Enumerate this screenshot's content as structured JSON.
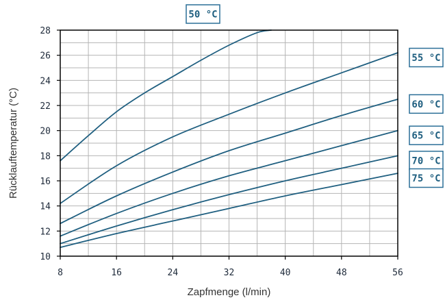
{
  "chart_data": {
    "type": "line",
    "xlabel": "Zapfmenge (l/min)",
    "ylabel": "Rücklauftemperatur (°C)",
    "xlim": [
      8,
      56
    ],
    "ylim": [
      10,
      28
    ],
    "xticks": [
      8,
      16,
      24,
      32,
      40,
      48,
      56
    ],
    "yticks": [
      10,
      12,
      14,
      16,
      18,
      20,
      22,
      24,
      26,
      28
    ],
    "grid": true,
    "colors": {
      "line": "#1f5f80",
      "grid": "#b5b5b5",
      "tag_border": "#2a6f97",
      "axis": "#000000"
    },
    "series": [
      {
        "name": "50 °C",
        "points": [
          [
            8,
            17.6
          ],
          [
            12,
            19.6
          ],
          [
            16,
            21.5
          ],
          [
            20,
            23.0
          ],
          [
            24,
            24.3
          ],
          [
            28,
            25.6
          ],
          [
            32,
            26.8
          ],
          [
            36,
            27.8
          ],
          [
            38,
            28.0
          ]
        ]
      },
      {
        "name": "55 °C",
        "points": [
          [
            8,
            14.2
          ],
          [
            16,
            17.2
          ],
          [
            24,
            19.5
          ],
          [
            32,
            21.3
          ],
          [
            40,
            23.0
          ],
          [
            48,
            24.6
          ],
          [
            56,
            26.2
          ]
        ]
      },
      {
        "name": "60 °C",
        "points": [
          [
            8,
            12.6
          ],
          [
            16,
            14.8
          ],
          [
            24,
            16.7
          ],
          [
            32,
            18.4
          ],
          [
            40,
            19.8
          ],
          [
            48,
            21.2
          ],
          [
            56,
            22.5
          ]
        ]
      },
      {
        "name": "65 °C",
        "points": [
          [
            8,
            11.6
          ],
          [
            16,
            13.4
          ],
          [
            24,
            15.0
          ],
          [
            32,
            16.4
          ],
          [
            40,
            17.6
          ],
          [
            48,
            18.8
          ],
          [
            56,
            20.0
          ]
        ]
      },
      {
        "name": "70 °C",
        "points": [
          [
            8,
            11.0
          ],
          [
            16,
            12.4
          ],
          [
            24,
            13.7
          ],
          [
            32,
            14.9
          ],
          [
            40,
            16.0
          ],
          [
            48,
            17.0
          ],
          [
            56,
            18.0
          ]
        ]
      },
      {
        "name": "75 °C",
        "points": [
          [
            8,
            10.7
          ],
          [
            16,
            11.8
          ],
          [
            24,
            12.8
          ],
          [
            32,
            13.8
          ],
          [
            40,
            14.8
          ],
          [
            48,
            15.7
          ],
          [
            56,
            16.6
          ]
        ]
      }
    ]
  }
}
